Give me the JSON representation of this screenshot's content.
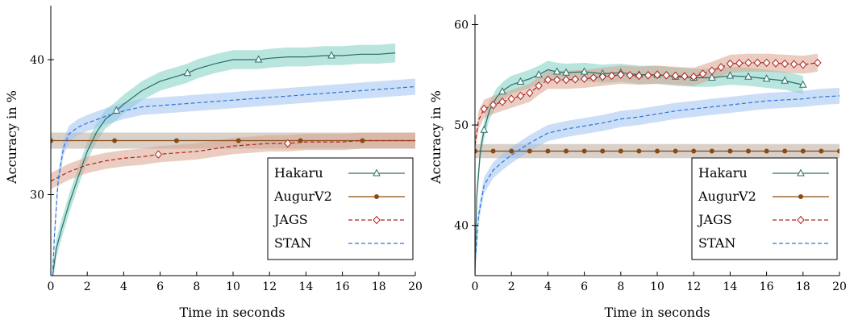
{
  "chart_data": [
    {
      "type": "line",
      "title": "",
      "xlabel": "Time in seconds",
      "ylabel": "Accuracy in %",
      "xlim": [
        0,
        20
      ],
      "ylim": [
        24,
        44
      ],
      "xticks": [
        "0",
        "2",
        "4",
        "6",
        "8",
        "10",
        "12",
        "14",
        "16",
        "18",
        "20"
      ],
      "yticks": [
        "30",
        "40"
      ],
      "legend_position": "bottom-right",
      "grid": false,
      "series": [
        {
          "name": "Hakaru",
          "color": "#2a6f66",
          "band_color": "#7fcfc4",
          "dash": "solid",
          "marker": "triangle",
          "x": [
            0.1,
            0.3,
            0.6,
            1.0,
            1.5,
            2.0,
            2.5,
            3.0,
            3.5,
            4.0,
            5.0,
            6.0,
            7.0,
            7.5,
            8.0,
            9.0,
            10.0,
            11.0,
            11.4,
            12.0,
            13.0,
            14.0,
            15.0,
            15.4,
            16.0,
            17.0,
            18.0,
            18.9
          ],
          "y": [
            24,
            26,
            27.5,
            29.3,
            31.3,
            33.2,
            34.6,
            35.6,
            36.1,
            36.7,
            37.7,
            38.4,
            38.8,
            39.0,
            39.3,
            39.7,
            40.0,
            40.0,
            40.0,
            40.1,
            40.2,
            40.2,
            40.3,
            40.3,
            40.3,
            40.4,
            40.4,
            40.5
          ],
          "markers_x": [
            3.6,
            7.5,
            11.4,
            15.4
          ]
        },
        {
          "name": "AugurV2",
          "color": "#8a4a12",
          "band_color": "#b8aa9c",
          "dash": "solid",
          "marker": "dot",
          "x": [
            0,
            1,
            2,
            3,
            4,
            5,
            6,
            7,
            8,
            9,
            10,
            11,
            12,
            13,
            14,
            15,
            16,
            17,
            18,
            19,
            20
          ],
          "y": [
            34.0,
            34.0,
            34.0,
            34.0,
            34.0,
            34.0,
            34.0,
            34.0,
            34.0,
            34.0,
            34.0,
            34.0,
            34.0,
            34.0,
            34.0,
            34.0,
            34.0,
            34.0,
            34.0,
            34.0,
            34.0
          ],
          "markers_x": [
            0,
            3.5,
            6.9,
            10.3,
            13.7,
            17.1
          ]
        },
        {
          "name": "JAGS",
          "color": "#b22020",
          "band_color": "#d9a48c",
          "dash": "dashed",
          "marker": "diamond",
          "x": [
            0,
            1,
            2,
            3,
            4,
            5,
            6,
            7,
            8,
            9,
            10,
            11,
            12,
            13,
            14,
            15,
            16,
            17,
            18,
            19,
            20
          ],
          "y": [
            31.0,
            31.7,
            32.2,
            32.5,
            32.7,
            32.8,
            33.0,
            33.1,
            33.2,
            33.4,
            33.6,
            33.7,
            33.8,
            33.8,
            33.9,
            33.9,
            33.9,
            34.0,
            34.0,
            34.0,
            34.0
          ],
          "markers_x": [
            5.9,
            13.0
          ]
        },
        {
          "name": "STAN",
          "color": "#2f74d8",
          "band_color": "#9ec2f0",
          "dash": "dashed",
          "marker": "none",
          "x": [
            0.1,
            0.2,
            0.4,
            0.7,
            1.0,
            1.5,
            2.0,
            3.0,
            4.0,
            5.0,
            6.0,
            7.0,
            8.0,
            9.0,
            10.0,
            11.0,
            12.0,
            13.0,
            14.0,
            15.0,
            16.0,
            17.0,
            18.0,
            19.0,
            20.0
          ],
          "y": [
            24,
            27,
            31,
            33.5,
            34.5,
            35.0,
            35.3,
            35.8,
            36.2,
            36.5,
            36.6,
            36.7,
            36.8,
            36.9,
            37.0,
            37.1,
            37.2,
            37.3,
            37.4,
            37.5,
            37.6,
            37.7,
            37.8,
            37.9,
            38.0
          ],
          "markers_x": []
        }
      ]
    },
    {
      "type": "line",
      "title": "",
      "xlabel": "Time in seconds",
      "ylabel": "Accuracy in %",
      "xlim": [
        0,
        20
      ],
      "ylim": [
        35,
        61
      ],
      "xticks": [
        "0",
        "2",
        "4",
        "6",
        "8",
        "10",
        "12",
        "14",
        "16",
        "18",
        "20"
      ],
      "yticks": [
        "40",
        "50",
        "60"
      ],
      "legend_position": "bottom-right",
      "grid": false,
      "series": [
        {
          "name": "Hakaru",
          "color": "#2a6f66",
          "band_color": "#7fcfc4",
          "dash": "solid",
          "marker": "triangle",
          "x": [
            0,
            0.1,
            0.3,
            0.5,
            0.8,
            1.2,
            1.6,
            2.0,
            2.5,
            3.0,
            3.5,
            4.0,
            4.5,
            5,
            6,
            7,
            8,
            9,
            10,
            11,
            12,
            13,
            14,
            15,
            16,
            17,
            18
          ],
          "y": [
            35,
            43,
            47.5,
            49.5,
            51.5,
            52.8,
            53.5,
            54.0,
            54.3,
            54.6,
            55.0,
            55.5,
            55.3,
            55.2,
            55.3,
            55.1,
            55.2,
            55.0,
            55.0,
            54.8,
            54.7,
            54.7,
            54.9,
            54.8,
            54.6,
            54.4,
            54.0
          ],
          "markers_x": [
            0.5,
            1.5,
            2.5,
            3.5,
            4.5,
            5,
            6,
            7,
            8,
            9,
            10,
            11,
            12,
            13,
            14,
            15,
            16,
            17,
            18
          ]
        },
        {
          "name": "AugurV2",
          "color": "#8a4a12",
          "band_color": "#b8aa9c",
          "dash": "solid",
          "marker": "dot",
          "x": [
            0,
            1,
            2,
            3,
            4,
            5,
            6,
            7,
            8,
            9,
            10,
            11,
            12,
            13,
            14,
            15,
            16,
            17,
            18,
            19,
            20
          ],
          "y": [
            47.4,
            47.4,
            47.4,
            47.4,
            47.4,
            47.4,
            47.4,
            47.4,
            47.4,
            47.4,
            47.4,
            47.4,
            47.4,
            47.4,
            47.4,
            47.4,
            47.4,
            47.4,
            47.4,
            47.4,
            47.4
          ],
          "markers_x": [
            0,
            1,
            2,
            3,
            4,
            5,
            6,
            7,
            8,
            9,
            10,
            11,
            12,
            13,
            14,
            15,
            16,
            17,
            18,
            19,
            20
          ]
        },
        {
          "name": "JAGS",
          "color": "#b22020",
          "band_color": "#d9a48c",
          "dash": "dashed",
          "marker": "diamond",
          "x": [
            0,
            0.2,
            0.5,
            1.0,
            1.5,
            2.0,
            2.5,
            3.0,
            3.5,
            4.0,
            5,
            6,
            7,
            8,
            9,
            10,
            11,
            12,
            13,
            14,
            15,
            16,
            17,
            18,
            18.8
          ],
          "y": [
            48,
            50.5,
            51.6,
            52.0,
            52.3,
            52.6,
            52.9,
            53.2,
            53.9,
            54.5,
            54.5,
            54.6,
            54.8,
            55.0,
            54.9,
            55.0,
            54.9,
            54.8,
            55.4,
            56.1,
            56.2,
            56.2,
            56.1,
            56.0,
            56.2
          ],
          "markers_x": [
            0.5,
            1.0,
            1.5,
            2.0,
            2.5,
            3.0,
            3.5,
            4.0,
            4.5,
            5,
            5.5,
            6,
            6.5,
            7,
            7.5,
            8,
            8.5,
            9,
            9.5,
            10,
            10.5,
            11,
            11.5,
            12,
            12.5,
            13,
            13.5,
            14,
            14.5,
            15,
            15.5,
            16,
            16.5,
            17,
            17.5,
            18,
            18.8
          ]
        },
        {
          "name": "STAN",
          "color": "#2f74d8",
          "band_color": "#9ec2f0",
          "dash": "dashed",
          "marker": "none",
          "x": [
            0,
            0.2,
            0.5,
            1.0,
            1.5,
            2,
            3,
            4,
            5,
            6,
            7,
            8,
            9,
            10,
            11,
            12,
            13,
            14,
            15,
            16,
            17,
            18,
            19,
            20
          ],
          "y": [
            36,
            41,
            44,
            45.5,
            46.3,
            47.0,
            48.2,
            49.2,
            49.6,
            49.9,
            50.2,
            50.6,
            50.8,
            51.1,
            51.4,
            51.6,
            51.8,
            52.0,
            52.2,
            52.4,
            52.5,
            52.6,
            52.8,
            52.9
          ],
          "markers_x": []
        }
      ]
    }
  ]
}
